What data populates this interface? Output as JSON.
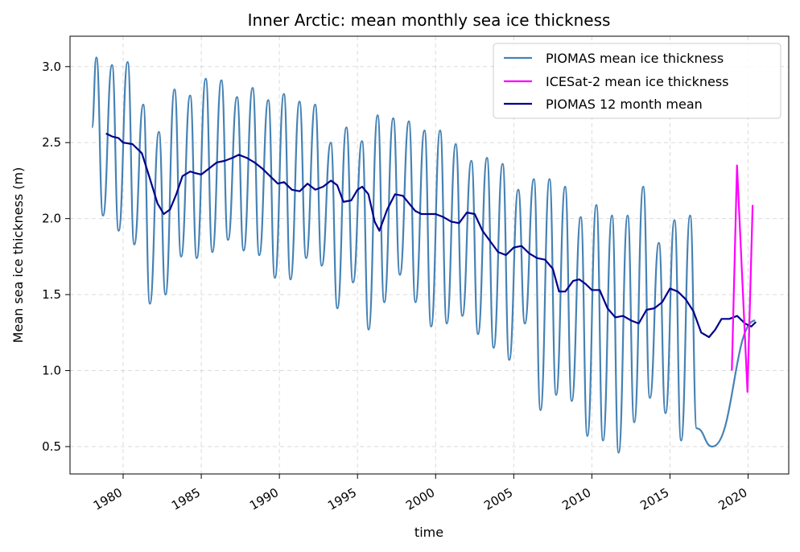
{
  "chart_data": {
    "type": "line",
    "title": "Inner Arctic: mean monthly sea ice thickness",
    "xlabel": "time",
    "ylabel": "Mean sea ice thickness (m)",
    "xlim": [
      1976.6,
      2022.6
    ],
    "ylim": [
      0.32,
      3.2
    ],
    "x_ticks": [
      1980,
      1985,
      1990,
      1995,
      2000,
      2005,
      2010,
      2015,
      2020
    ],
    "x_tick_labels": [
      "1980",
      "1985",
      "1990",
      "1995",
      "2000",
      "2005",
      "2010",
      "2015",
      "2020"
    ],
    "y_ticks": [
      0.5,
      1.0,
      1.5,
      2.0,
      2.5,
      3.0
    ],
    "y_tick_labels": [
      "0.5",
      "1.0",
      "1.5",
      "2.0",
      "2.5",
      "3.0"
    ],
    "grid": true,
    "legend_position": "top-right",
    "series": [
      {
        "name": "PIOMAS mean ice thickness",
        "color": "#4682b4",
        "style": "monthly seasonal cycle",
        "annual_max": [
          3.06,
          3.01,
          3.03,
          2.75,
          2.57,
          2.85,
          2.81,
          2.92,
          2.91,
          2.8,
          2.86,
          2.78,
          2.82,
          2.77,
          2.75,
          2.5,
          2.6,
          2.51,
          2.68,
          2.66,
          2.64,
          2.58,
          2.58,
          2.49,
          2.38,
          2.4,
          2.36,
          2.19,
          2.26,
          2.26,
          2.21,
          2.01,
          2.09,
          2.02,
          2.02,
          2.21,
          1.84,
          1.99,
          2.02
        ],
        "annual_min": [
          2.02,
          1.92,
          1.83,
          1.44,
          1.5,
          1.75,
          1.74,
          1.78,
          1.86,
          1.79,
          1.76,
          1.61,
          1.6,
          1.74,
          1.69,
          1.41,
          1.58,
          1.27,
          1.45,
          1.63,
          1.45,
          1.29,
          1.31,
          1.36,
          1.24,
          1.15,
          1.07,
          1.31,
          0.74,
          0.84,
          0.8,
          0.57,
          0.54,
          0.46,
          0.66,
          0.82,
          0.72,
          0.54,
          0.62,
          0.5
        ],
        "start_value": 2.6,
        "end_value": 1.33
      },
      {
        "name": "ICESat-2 mean ice thickness",
        "color": "#ff00ff",
        "x": [
          2018.96,
          2019.29,
          2019.96,
          2020.29
        ],
        "y": [
          1.0,
          2.35,
          0.86,
          2.09
        ]
      },
      {
        "name": "PIOMAS 12 month mean",
        "color": "#00008b",
        "x": [
          1978.9,
          1979.3,
          1979.7,
          1980.0,
          1980.6,
          1981.2,
          1981.6,
          1982.2,
          1982.6,
          1983.0,
          1983.4,
          1983.8,
          1984.3,
          1984.6,
          1985.0,
          1985.5,
          1986.0,
          1986.5,
          1987.0,
          1987.4,
          1987.9,
          1988.4,
          1988.9,
          1989.4,
          1989.9,
          1990.3,
          1990.8,
          1991.3,
          1991.8,
          1992.3,
          1992.8,
          1993.3,
          1993.7,
          1994.1,
          1994.6,
          1995.0,
          1995.3,
          1995.7,
          1996.1,
          1996.4,
          1996.9,
          1997.4,
          1997.9,
          1998.3,
          1998.7,
          1999.1,
          1999.5,
          2000.0,
          2000.5,
          2001.0,
          2001.5,
          2002.0,
          2002.5,
          2003.0,
          2003.5,
          2004.0,
          2004.5,
          2005.0,
          2005.5,
          2006.0,
          2006.5,
          2007.0,
          2007.5,
          2007.9,
          2008.3,
          2008.8,
          2009.2,
          2009.6,
          2010.0,
          2010.5,
          2011.0,
          2011.5,
          2012.0,
          2012.5,
          2013.0,
          2013.5,
          2014.0,
          2014.5,
          2015.0,
          2015.5,
          2016.0,
          2016.5,
          2017.0,
          2017.5,
          2017.9,
          2018.3,
          2018.8,
          2019.3,
          2019.8,
          2020.2,
          2020.5
        ],
        "y": [
          2.56,
          2.54,
          2.53,
          2.5,
          2.49,
          2.43,
          2.3,
          2.1,
          2.03,
          2.06,
          2.16,
          2.28,
          2.31,
          2.3,
          2.29,
          2.33,
          2.37,
          2.38,
          2.4,
          2.42,
          2.4,
          2.37,
          2.33,
          2.28,
          2.23,
          2.24,
          2.19,
          2.18,
          2.23,
          2.19,
          2.21,
          2.25,
          2.22,
          2.11,
          2.12,
          2.19,
          2.21,
          2.16,
          1.98,
          1.92,
          2.06,
          2.16,
          2.15,
          2.1,
          2.05,
          2.03,
          2.03,
          2.03,
          2.01,
          1.98,
          1.97,
          2.04,
          2.03,
          1.92,
          1.85,
          1.78,
          1.76,
          1.81,
          1.82,
          1.77,
          1.74,
          1.73,
          1.67,
          1.52,
          1.52,
          1.59,
          1.6,
          1.57,
          1.53,
          1.53,
          1.41,
          1.35,
          1.36,
          1.33,
          1.31,
          1.4,
          1.41,
          1.45,
          1.54,
          1.52,
          1.47,
          1.39,
          1.25,
          1.22,
          1.27,
          1.34,
          1.34,
          1.36,
          1.31,
          1.29,
          1.32
        ]
      }
    ]
  }
}
